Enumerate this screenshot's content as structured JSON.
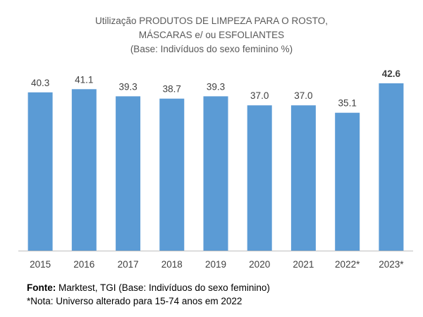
{
  "chart_data": {
    "type": "bar",
    "title_lines": [
      "Utilização PRODUTOS DE LIMPEZA PARA O ROSTO,",
      "MÁSCARAS e/ ou ESFOLIANTES",
      "(Base: Indivíduos do sexo feminino %)"
    ],
    "categories": [
      "2015",
      "2016",
      "2017",
      "2018",
      "2019",
      "2020",
      "2021",
      "2022*",
      "2023*"
    ],
    "values": [
      40.3,
      41.1,
      39.3,
      38.7,
      39.3,
      37.0,
      37.0,
      35.1,
      42.6
    ],
    "value_labels": [
      "40.3",
      "41.1",
      "39.3",
      "38.7",
      "39.3",
      "37.0",
      "37.0",
      "35.1",
      "42.6"
    ],
    "highlight_index": 8,
    "ylim": [
      0,
      42.6
    ],
    "bar_color": "#5B9BD5",
    "axis_color": "#BFBFBF",
    "grid": false,
    "xlabel": "",
    "ylabel": ""
  },
  "footer": {
    "source_label": "Fonte:",
    "source_text": " Marktest, TGI  (Base: Indivíduos do sexo feminino)",
    "note": "*Nota: Universo alterado para 15-74 anos em 2022"
  }
}
